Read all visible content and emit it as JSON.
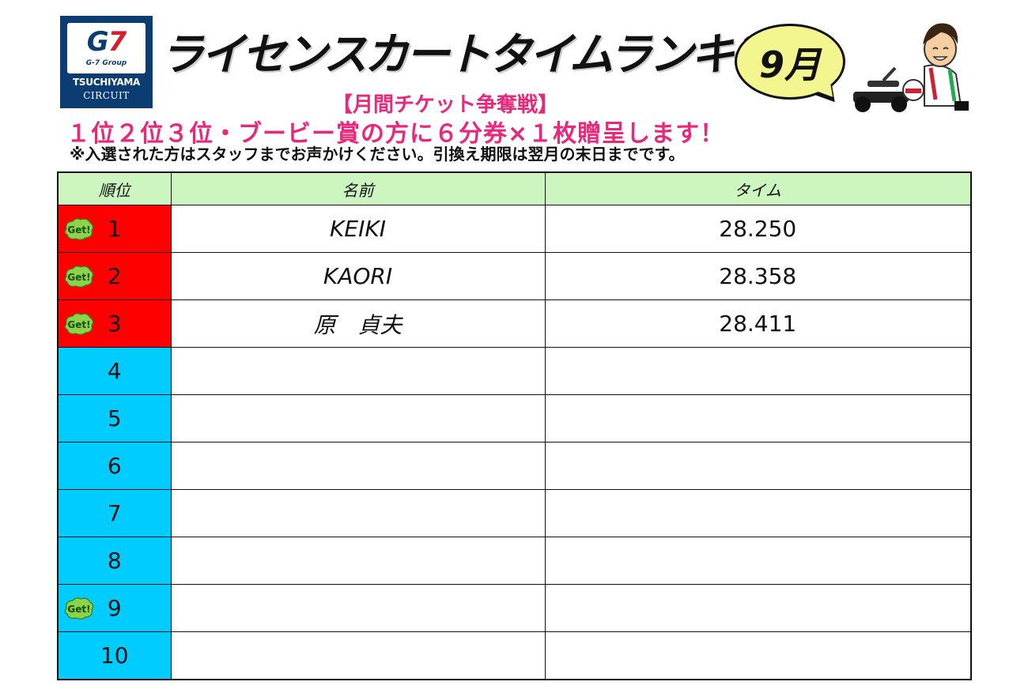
{
  "logo": {
    "brand": "G7",
    "group": "G-7 Group",
    "name_line1": "TSUCHIYAMA",
    "name_line2": "CIRCUIT"
  },
  "title": "ライセンスカートタイムランキング",
  "month": "9月",
  "subtitle": "【月間チケット争奪戦】",
  "notice": "１位２位３位・ブービー賞の方に６分券×１枚贈呈します！",
  "note": "※入選された方はスタッフまでお声かけください。引換え期限は翌月の末日までです。",
  "badge_text": "Get!",
  "table": {
    "headers": {
      "rank": "順位",
      "name": "名前",
      "time": "タイム"
    },
    "rows": [
      {
        "rank": "1",
        "name": "KEIKI",
        "time": "28.250",
        "highlight": "red",
        "get": true
      },
      {
        "rank": "2",
        "name": "KAORI",
        "time": "28.358",
        "highlight": "red",
        "get": true
      },
      {
        "rank": "3",
        "name": "原　貞夫",
        "time": "28.411",
        "highlight": "red",
        "get": true
      },
      {
        "rank": "4",
        "name": "",
        "time": "",
        "highlight": "blue",
        "get": false
      },
      {
        "rank": "5",
        "name": "",
        "time": "",
        "highlight": "blue",
        "get": false
      },
      {
        "rank": "6",
        "name": "",
        "time": "",
        "highlight": "blue",
        "get": false
      },
      {
        "rank": "7",
        "name": "",
        "time": "",
        "highlight": "blue",
        "get": false
      },
      {
        "rank": "8",
        "name": "",
        "time": "",
        "highlight": "blue",
        "get": false
      },
      {
        "rank": "9",
        "name": "",
        "time": "",
        "highlight": "blue",
        "get": true
      },
      {
        "rank": "10",
        "name": "",
        "time": "",
        "highlight": "blue",
        "get": false
      }
    ]
  },
  "colors": {
    "red_rank": "#ff0000",
    "blue_rank": "#00ccff",
    "header_bg": "#ccf5bf",
    "accent_pink": "#e8287a",
    "month_bubble": "#f3f58f",
    "logo_navy": "#0b3d73"
  }
}
